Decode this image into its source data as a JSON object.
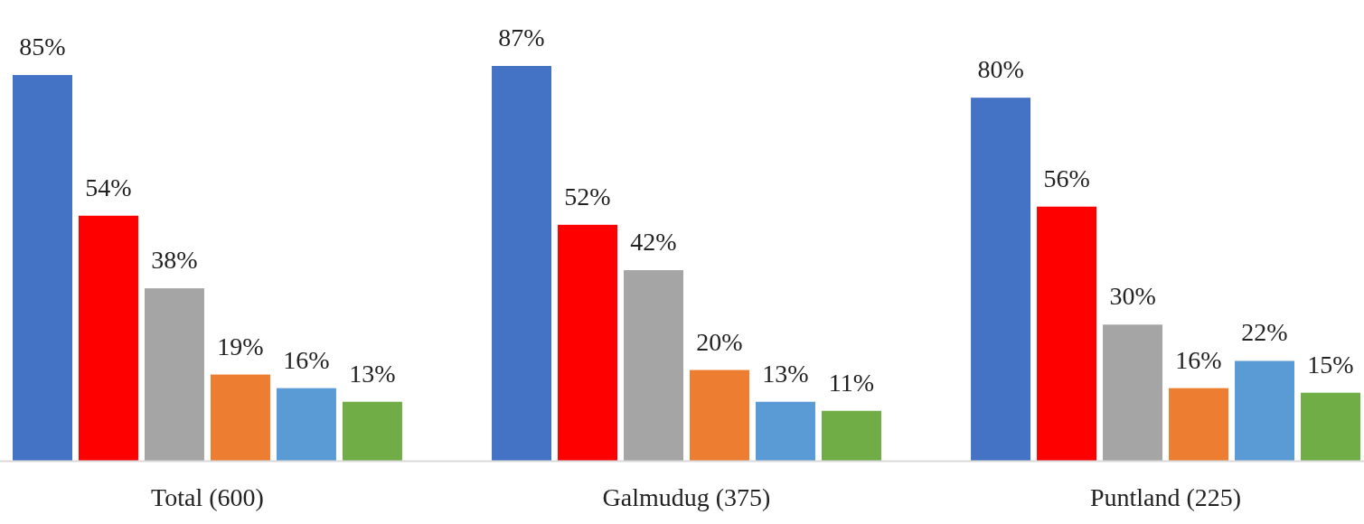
{
  "chart_data": {
    "type": "bar",
    "categories": [
      "Total (600)",
      "Galmudug (375)",
      "Puntland (225)"
    ],
    "series": [
      {
        "color": "#4472c4",
        "values": [
          85,
          87,
          80
        ],
        "value_labels": [
          "85%",
          "87%",
          "80%"
        ]
      },
      {
        "color": "#ff0000",
        "values": [
          54,
          52,
          56
        ],
        "value_labels": [
          "54%",
          "52%",
          "56%"
        ]
      },
      {
        "color": "#a5a5a5",
        "values": [
          38,
          42,
          30
        ],
        "value_labels": [
          "38%",
          "42%",
          "30%"
        ]
      },
      {
        "color": "#ed7d31",
        "values": [
          19,
          20,
          16
        ],
        "value_labels": [
          "19%",
          "20%",
          "16%"
        ]
      },
      {
        "color": "#5b9bd5",
        "values": [
          16,
          13,
          22
        ],
        "value_labels": [
          "16%",
          "13%",
          "22%"
        ]
      },
      {
        "color": "#70ad47",
        "values": [
          13,
          11,
          15
        ],
        "value_labels": [
          "13%",
          "11%",
          "15%"
        ]
      }
    ]
  }
}
